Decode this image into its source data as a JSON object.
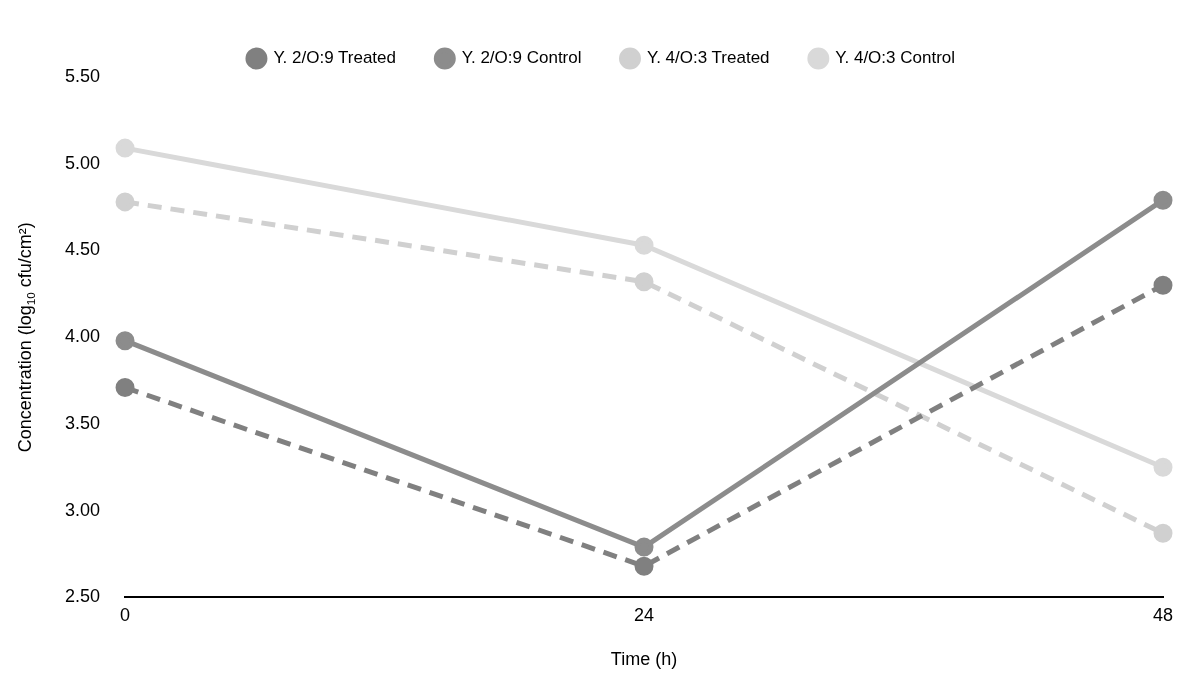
{
  "chart_data": {
    "type": "line",
    "xlabel": "Time (h)",
    "ylabel": "Concentration (log$_{10}$ cfu/cm²)",
    "x": [
      0,
      24,
      48
    ],
    "xlim": [
      0,
      48
    ],
    "xticks": [
      0,
      24,
      48
    ],
    "ylim": [
      2.5,
      5.5
    ],
    "yticks": [
      {
        "value": 2.5,
        "label": "2.50"
      },
      {
        "value": 3,
        "label": "3.00"
      },
      {
        "value": 3.5,
        "label": "3.50"
      },
      {
        "value": 4,
        "label": "4.00"
      },
      {
        "value": 4.5,
        "label": "4.50"
      },
      {
        "value": 5,
        "label": "5.00"
      },
      {
        "value": 5.5,
        "label": "5.50"
      }
    ],
    "grid": false,
    "legend": "top",
    "marker": "circle",
    "series": [
      {
        "name": "Y. 2/O:9 Treated",
        "color": "#808080",
        "line_style": "dashed",
        "values": [
          3.71,
          2.68,
          4.3
        ]
      },
      {
        "name": "Y. 2/O:9 Control",
        "color": "#8c8c8c",
        "line_style": "solid",
        "values": [
          3.98,
          2.79,
          4.79
        ]
      },
      {
        "name": "Y. 4/O:3 Treated",
        "color": "#d0d0d0",
        "line_style": "dashed",
        "values": [
          4.78,
          4.32,
          2.87
        ]
      },
      {
        "name": "Y. 4/O:3 Control",
        "color": "#d9d9d9",
        "line_style": "solid",
        "values": [
          5.09,
          4.53,
          3.25
        ]
      }
    ]
  }
}
